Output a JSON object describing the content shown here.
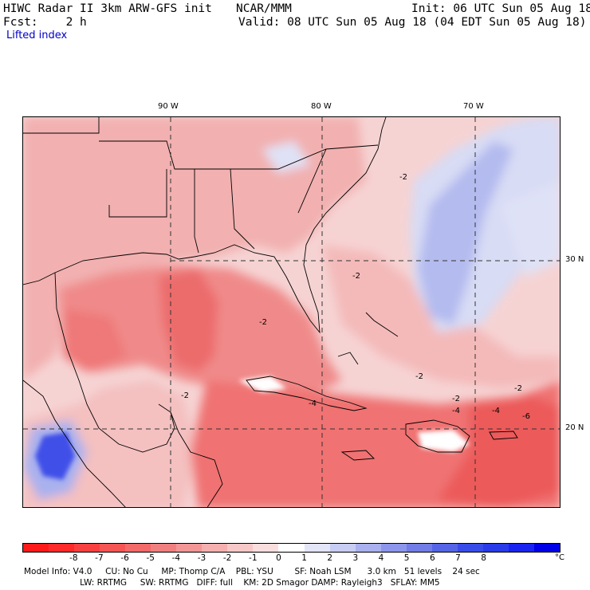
{
  "header": {
    "model_line": "HIWC Radar II 3km ARW-GFS init",
    "org": "NCAR/MMM",
    "init": "Init: 06 UTC Sun 05 Aug 18",
    "fcst": "Fcst:    2 h",
    "valid": "Valid: 08 UTC Sun 05 Aug 18 (04 EDT Sun 05 Aug 18)",
    "field": "Lifted index"
  },
  "map": {
    "lon_labels": [
      "90 W",
      "80 W",
      "70 W"
    ],
    "lat_labels": [
      "30 N",
      "20 N"
    ],
    "contour_labels": [
      "-2",
      "-2",
      "-2",
      "-2",
      "-2",
      "-2",
      "-2",
      "-4",
      "-4",
      "-4",
      "-6"
    ],
    "colors": {
      "ocean_light": "#f6d3d3",
      "land_light": "#f2b9b9",
      "gulf_mid": "#f08a8a",
      "gulf_strong": "#ee7070",
      "caribbean": "#ef6262",
      "stable_blue_light": "#d8dcf4",
      "stable_blue": "#a9b1ee",
      "stable_blue_strong": "#3f4fe8"
    }
  },
  "colorbar": {
    "colors": [
      "#ff1a1a",
      "#ff2a2a",
      "#f84040",
      "#f45555",
      "#f26a6a",
      "#f08080",
      "#f29696",
      "#f4afaf",
      "#f7c8c8",
      "#fadede",
      "#ffffff",
      "#e3e5f8",
      "#c8cdf3",
      "#aab1ee",
      "#8d96ea",
      "#727de6",
      "#5565e6",
      "#3a4ce8",
      "#2a3be8",
      "#1a24f0",
      "#0000e6"
    ],
    "tick_labels": [
      "-8",
      "-7",
      "-6",
      "-5",
      "-4",
      "-3",
      "-2",
      "-1",
      "0",
      "1",
      "2",
      "3",
      "4",
      "5",
      "6",
      "7",
      "8"
    ],
    "unit": "°C"
  },
  "footer": {
    "line1": "Model Info: V4.0     CU: No Cu     MP: Thomp C/A    PBL: YSU        SF: Noah LSM      3.0 km   51 levels    24 sec",
    "line2": "                     LW: RRTMG     SW: RRTMG   DIFF: full    KM: 2D Smagor DAMP: Rayleigh3   SFLAY: MM5"
  }
}
